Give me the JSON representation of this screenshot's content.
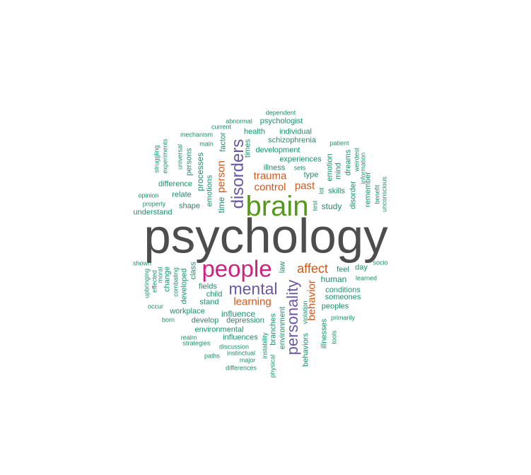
{
  "colors": {
    "gray": "#4d4d4d",
    "green": "#539a1b",
    "magenta": "#d1207f",
    "purple": "#6a58a6",
    "orange": "#d2571a",
    "teal": "#1b8f6c"
  },
  "words": {
    "psychology": "psychology",
    "brain": "brain",
    "people": "people",
    "disorders": "disorders",
    "mental": "mental",
    "personality": "personality",
    "affect": "affect",
    "trauma": "trauma",
    "control": "control",
    "past": "past",
    "person": "person",
    "behavior": "behavior",
    "learning": "learning",
    "abnormal": "abnormal",
    "psychologist": "psychologist",
    "dependent": "dependent",
    "current": "current",
    "health": "health",
    "individual": "individual",
    "mechanism": "mechanism",
    "main": "main",
    "factor": "factor",
    "times": "times",
    "schizophrenia": "schizophrenia",
    "patient": "patient",
    "development": "development",
    "struggling": "struggling",
    "experiments": "experiments",
    "universal": "universal",
    "persons": "persons",
    "processes": "processes",
    "illness": "illness",
    "experiences": "experiences",
    "sets": "sets",
    "emotion": "emotion",
    "mind": "mind",
    "dreams": "dreams",
    "weirdest": "weirdest",
    "information": "information",
    "difference": "difference",
    "emotions": "emotions",
    "time": "time",
    "type": "type",
    "remember": "remember",
    "benefit": "benefit",
    "unconscious": "unconscious",
    "opinion": "opinion",
    "relate": "relate",
    "lot": "lot",
    "skills": "skills",
    "properly": "properly",
    "shape": "shape",
    "test": "test",
    "study": "study",
    "disorder": "disorder",
    "understand": "understand",
    "shown": "shown",
    "socio": "socio",
    "upbringing": "upbringing",
    "effected": "effected",
    "moral": "moral",
    "change": "change",
    "combating": "combating",
    "class": "class",
    "developed": "developed",
    "law": "law",
    "feel": "feel",
    "day": "day",
    "learned": "learned",
    "human": "human",
    "fields": "fields",
    "child": "child",
    "conditions": "conditions",
    "someones": "someones",
    "stand": "stand",
    "occur": "occur",
    "peoples": "peoples",
    "workplace": "workplace",
    "influence": "influence",
    "born": "born",
    "develop": "develop",
    "depression": "depression",
    "primarily": "primarily",
    "violation": "violation",
    "environmental": "environmental",
    "illnesses": "illnesses",
    "tools": "tools",
    "realm": "realm",
    "influences": "influences",
    "branches": "branches",
    "environment": "environment",
    "strategies": "strategies",
    "discussion": "discussion",
    "instability": "instability",
    "instinctual": "instinctual",
    "behaviors": "behaviors",
    "paths": "paths",
    "major": "major",
    "differences": "differences",
    "physical": "physical"
  }
}
